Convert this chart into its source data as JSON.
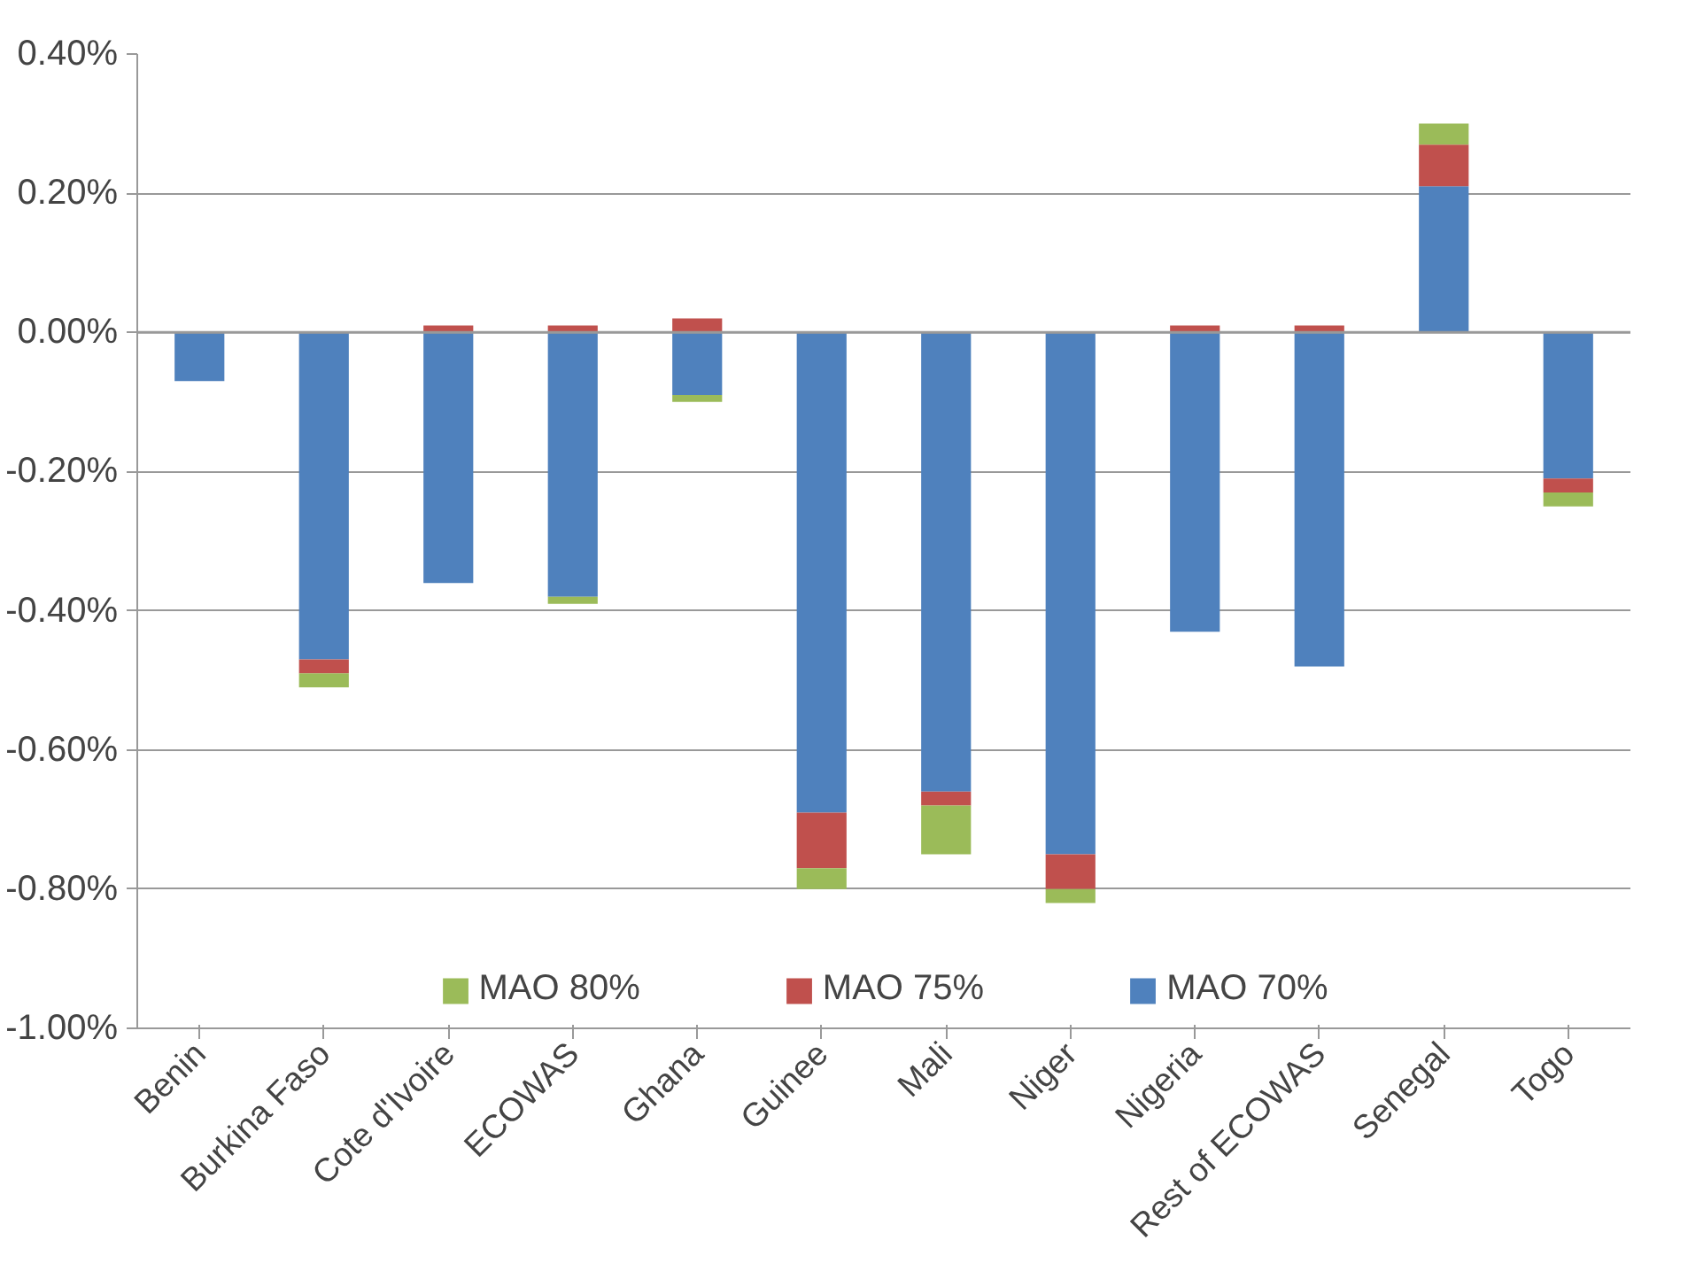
{
  "chart_data": {
    "type": "bar",
    "stacked": true,
    "categories": [
      "Benin",
      "Burkina Faso",
      "Cote d'Ivoire",
      "ECOWAS",
      "Ghana",
      "Guinee",
      "Mali",
      "Niger",
      "Nigeria",
      "Rest of ECOWAS",
      "Senegal",
      "Togo"
    ],
    "series": [
      {
        "name": "MAO 70%",
        "color": "#4f81bd",
        "values": [
          -0.07,
          -0.47,
          -0.36,
          -0.38,
          -0.09,
          -0.69,
          -0.66,
          -0.75,
          -0.43,
          -0.48,
          0.21,
          -0.21
        ]
      },
      {
        "name": "MAO 75%",
        "color": "#c0504d",
        "values": [
          null,
          -0.02,
          0.01,
          0.01,
          0.02,
          -0.08,
          -0.02,
          -0.05,
          0.01,
          0.01,
          0.06,
          -0.02
        ]
      },
      {
        "name": "MAO 80%",
        "color": "#9bbb59",
        "values": [
          null,
          -0.02,
          null,
          -0.01,
          -0.01,
          -0.03,
          -0.07,
          -0.02,
          null,
          null,
          0.03,
          -0.02
        ]
      }
    ],
    "ylim": [
      -1.0,
      0.4
    ],
    "yticks": [
      {
        "value": -1.0,
        "label": "-1.00%"
      },
      {
        "value": -0.8,
        "label": "-0.80%"
      },
      {
        "value": -0.6,
        "label": "-0.60%"
      },
      {
        "value": -0.4,
        "label": "-0.40%"
      },
      {
        "value": -0.2,
        "label": "-0.20%"
      },
      {
        "value": 0,
        "label": "0.00%"
      },
      {
        "value": 0.2,
        "label": "0.20%"
      },
      {
        "value": 0.4,
        "label": "0.40%"
      }
    ],
    "grid": "y",
    "legend": "bottom"
  }
}
